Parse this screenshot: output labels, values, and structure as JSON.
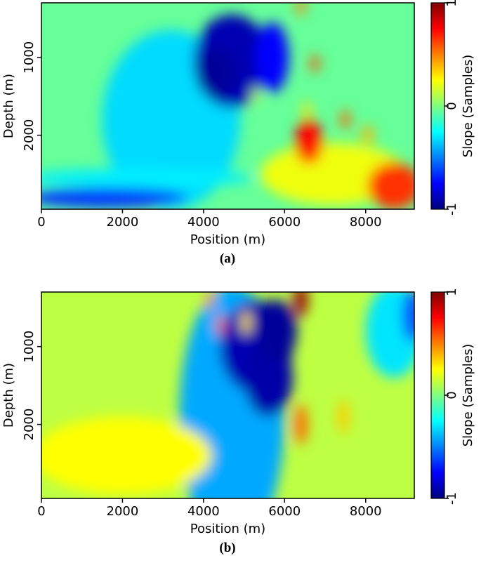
{
  "figure": {
    "colormap": [
      "#00007f",
      "#0000ff",
      "#0080ff",
      "#00ffff",
      "#80ff80",
      "#ffff00",
      "#ff8000",
      "#ff0000",
      "#7f0000"
    ]
  },
  "chart_data": [
    {
      "type": "heatmap",
      "caption": "(a)",
      "xlabel": "Position (m)",
      "ylabel": "Depth (m)",
      "colorbar_label": "Slope (Samples)",
      "xlim": [
        0,
        9200
      ],
      "ylim": [
        2950,
        300
      ],
      "x_ticks": [
        0,
        2000,
        4000,
        6000,
        8000
      ],
      "y_ticks": [
        1000,
        2000
      ],
      "colorbar_ticks": [
        -1,
        0,
        1
      ],
      "clim": [
        -1,
        1
      ],
      "background_value": -0.05,
      "features": [
        {
          "x": 3200,
          "y": 1800,
          "rx": 1700,
          "ry": 1150,
          "value": -0.32
        },
        {
          "x": 4700,
          "y": 1050,
          "rx": 950,
          "ry": 600,
          "value": -0.9
        },
        {
          "x": 4300,
          "y": 1200,
          "rx": 500,
          "ry": 320,
          "value": -0.95
        },
        {
          "x": 5700,
          "y": 1000,
          "rx": 400,
          "ry": 450,
          "value": -0.75
        },
        {
          "x": 2400,
          "y": 2550,
          "rx": 2800,
          "ry": 120,
          "value": -0.28
        },
        {
          "x": 1600,
          "y": 2800,
          "rx": 2000,
          "ry": 130,
          "value": -0.65
        },
        {
          "x": 7200,
          "y": 2500,
          "rx": 1800,
          "ry": 400,
          "value": 0.22
        },
        {
          "x": 8700,
          "y": 2650,
          "rx": 650,
          "ry": 300,
          "value": 0.65
        },
        {
          "x": 6600,
          "y": 2080,
          "rx": 340,
          "ry": 290,
          "value": 0.75
        },
        {
          "x": 6750,
          "y": 1080,
          "rx": 110,
          "ry": 110,
          "value": 0.6
        },
        {
          "x": 7500,
          "y": 1800,
          "rx": 120,
          "ry": 120,
          "value": 0.55
        },
        {
          "x": 8050,
          "y": 1990,
          "rx": 150,
          "ry": 110,
          "value": 0.4
        },
        {
          "x": 6550,
          "y": 1680,
          "rx": 110,
          "ry": 110,
          "value": 0.3
        },
        {
          "x": 6400,
          "y": 350,
          "rx": 120,
          "ry": 100,
          "value": 0.5
        },
        {
          "x": 5300,
          "y": 1500,
          "rx": 100,
          "ry": 120,
          "value": 0.1
        }
      ]
    },
    {
      "type": "heatmap",
      "caption": "(b)",
      "xlabel": "Position (m)",
      "ylabel": "Depth (m)",
      "colorbar_label": "Slope (Samples)",
      "xlim": [
        0,
        9200
      ],
      "ylim": [
        2950,
        300
      ],
      "x_ticks": [
        0,
        2000,
        4000,
        6000,
        8000
      ],
      "y_ticks": [
        1000,
        2000
      ],
      "colorbar_ticks": [
        -1,
        0,
        1
      ],
      "clim": [
        -1,
        1
      ],
      "background_value": 0.12,
      "features": [
        {
          "x": 4700,
          "y": 1900,
          "rx": 1300,
          "ry": 1700,
          "value": -0.42
        },
        {
          "x": 5300,
          "y": 1000,
          "rx": 900,
          "ry": 600,
          "value": -0.9
        },
        {
          "x": 5600,
          "y": 1400,
          "rx": 600,
          "ry": 500,
          "value": -0.92
        },
        {
          "x": 5800,
          "y": 800,
          "rx": 500,
          "ry": 400,
          "value": -0.95
        },
        {
          "x": 8700,
          "y": 800,
          "rx": 700,
          "ry": 600,
          "value": -0.3
        },
        {
          "x": 9150,
          "y": 600,
          "rx": 250,
          "ry": 350,
          "value": -0.6
        },
        {
          "x": 6400,
          "y": 400,
          "rx": 170,
          "ry": 220,
          "value": 0.95
        },
        {
          "x": 4420,
          "y": 720,
          "rx": 90,
          "ry": 140,
          "value": 0.55
        },
        {
          "x": 5050,
          "y": 690,
          "rx": 110,
          "ry": 150,
          "value": 0.3
        },
        {
          "x": 4150,
          "y": 400,
          "rx": 100,
          "ry": 100,
          "value": 0.5
        },
        {
          "x": 6400,
          "y": 2000,
          "rx": 160,
          "ry": 260,
          "value": 0.55
        },
        {
          "x": 7450,
          "y": 1900,
          "rx": 140,
          "ry": 220,
          "value": 0.35
        },
        {
          "x": 2000,
          "y": 2400,
          "rx": 2200,
          "ry": 500,
          "value": 0.25
        }
      ]
    }
  ]
}
